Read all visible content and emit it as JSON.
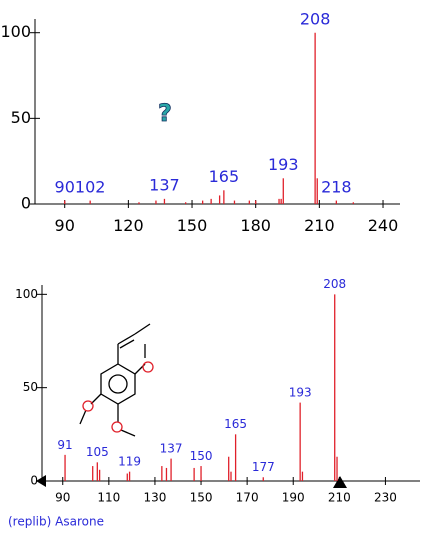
{
  "chart_data": [
    {
      "type": "stem",
      "color": "#e0202a",
      "label_color": "#2a2ad8",
      "font_size": 16,
      "xlim": [
        76,
        248
      ],
      "ylim": [
        0,
        108
      ],
      "xticks": [
        90,
        120,
        150,
        180,
        210,
        240
      ],
      "yticks": [
        0,
        50,
        100
      ],
      "x": [
        90,
        102,
        125,
        133,
        137,
        147,
        155,
        159,
        163,
        165,
        170,
        177,
        180,
        191,
        192,
        193,
        208,
        209,
        218,
        226
      ],
      "values": [
        2,
        2,
        1,
        2,
        3,
        1,
        2,
        3,
        5,
        8,
        2,
        2,
        2,
        3,
        3,
        15,
        100,
        15,
        2,
        1
      ],
      "peak_labels": [
        90,
        102,
        137,
        165,
        193,
        208,
        218
      ]
    },
    {
      "type": "stem",
      "color": "#e0202a",
      "label_color": "#2a2ad8",
      "font_size": 12,
      "xlim": [
        81,
        245
      ],
      "ylim": [
        0,
        105
      ],
      "xticks": [
        90,
        110,
        130,
        150,
        170,
        190,
        210,
        230
      ],
      "yticks": [
        0,
        50,
        100
      ],
      "x": [
        91,
        103,
        105,
        106,
        118,
        119,
        133,
        135,
        137,
        147,
        150,
        162,
        163,
        165,
        177,
        193,
        194,
        208,
        209
      ],
      "values": [
        14,
        8,
        10,
        6,
        4,
        5,
        8,
        7,
        12,
        7,
        8,
        13,
        5,
        25,
        2,
        42,
        5,
        100,
        13
      ],
      "peak_labels": [
        91,
        105,
        119,
        137,
        150,
        165,
        177,
        193,
        208
      ],
      "caption": "(replib) Asarone"
    }
  ]
}
